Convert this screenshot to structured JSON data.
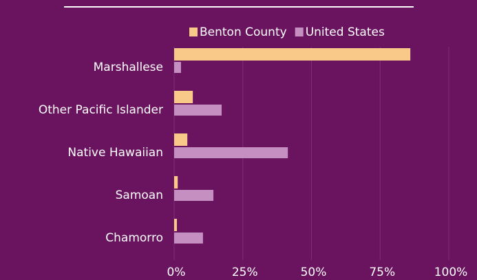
{
  "chart_data": {
    "type": "bar",
    "orientation": "horizontal",
    "categories": [
      "Marshallese",
      "Other Pacific Islander",
      "Native Hawaiian",
      "Samoan",
      "Chamorro"
    ],
    "series": [
      {
        "name": "Benton County",
        "color": "#f9c98a",
        "values": [
          86,
          6.8,
          4.8,
          1.3,
          1
        ]
      },
      {
        "name": "United States",
        "color": "#c58fc2",
        "values": [
          2.5,
          17.3,
          41.4,
          14.3,
          10.5
        ]
      }
    ],
    "xlim": [
      0,
      100
    ],
    "xticks": [
      {
        "value": 0,
        "label": "0%"
      },
      {
        "value": 25,
        "label": "25%"
      },
      {
        "value": 50,
        "label": "50%"
      },
      {
        "value": 75,
        "label": "75%"
      },
      {
        "value": 100,
        "label": "100%"
      }
    ],
    "grid": true
  }
}
